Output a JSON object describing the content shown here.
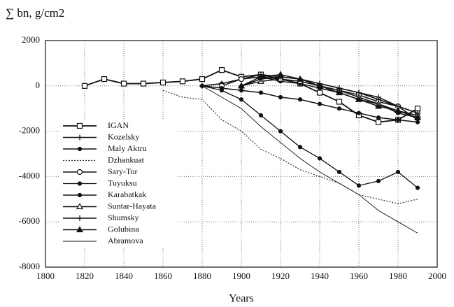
{
  "chart_data": {
    "type": "line",
    "title": "∑ bn, g/cm2",
    "x_label": "Years",
    "x": [
      1820,
      1830,
      1840,
      1850,
      1860,
      1870,
      1880,
      1890,
      1900,
      1910,
      1920,
      1930,
      1940,
      1950,
      1960,
      1970,
      1980,
      1990
    ],
    "xlim": [
      1800,
      2000
    ],
    "xticks": [
      1800,
      1820,
      1840,
      1860,
      1880,
      1900,
      1920,
      1940,
      1960,
      1980,
      2000
    ],
    "ylim": [
      -8000,
      2000
    ],
    "yticks": [
      2000,
      0,
      -2000,
      -4000,
      -6000,
      -8000
    ],
    "grid": true,
    "legend": "lower left",
    "series": [
      {
        "name": "IGAN",
        "color": "#111",
        "marker": "square",
        "dash": false,
        "width": 1.8,
        "values": [
          0,
          300,
          100,
          100,
          150,
          200,
          300,
          700,
          400,
          500,
          300,
          100,
          -300,
          -700,
          -1300,
          -1600,
          -1500,
          -1000
        ]
      },
      {
        "name": "Kozelsky",
        "color": "#111",
        "marker": "plus",
        "dash": false,
        "width": 1.5,
        "values": [
          null,
          null,
          null,
          null,
          null,
          null,
          0,
          100,
          300,
          500,
          400,
          300,
          100,
          -100,
          -300,
          -500,
          -900,
          -1500
        ]
      },
      {
        "name": "Maly Aktru",
        "color": "#111",
        "marker": "dot",
        "dash": false,
        "width": 1.5,
        "values": [
          null,
          null,
          null,
          null,
          null,
          null,
          0,
          100,
          300,
          400,
          200,
          100,
          -100,
          -300,
          -600,
          -800,
          -1200,
          -1400
        ]
      },
      {
        "name": "Dzhankuat",
        "color": "#333",
        "marker": "none",
        "dash": true,
        "width": 1.2,
        "values": [
          null,
          null,
          null,
          null,
          -200,
          -500,
          -600,
          -1500,
          -2000,
          -2800,
          -3200,
          -3700,
          -4000,
          -4300,
          -4800,
          -5000,
          -5200,
          -5000
        ]
      },
      {
        "name": "Sary-Tor",
        "color": "#111",
        "marker": "circle",
        "dash": false,
        "width": 1.5,
        "values": [
          null,
          null,
          null,
          null,
          null,
          null,
          null,
          0,
          300,
          400,
          300,
          200,
          0,
          -200,
          -400,
          -700,
          -900,
          -1200
        ]
      },
      {
        "name": "Tuyuksu",
        "color": "#111",
        "marker": "dot",
        "dash": false,
        "width": 1.3,
        "values": [
          null,
          null,
          null,
          null,
          null,
          null,
          0,
          -200,
          -600,
          -1300,
          -2000,
          -2700,
          -3200,
          -3800,
          -4400,
          -4200,
          -3800,
          -4500
        ]
      },
      {
        "name": "Karabatkak",
        "color": "#111",
        "marker": "dot",
        "dash": false,
        "width": 1.5,
        "values": [
          null,
          null,
          null,
          null,
          null,
          null,
          0,
          -100,
          -200,
          -300,
          -500,
          -600,
          -800,
          -1000,
          -1200,
          -1400,
          -1500,
          -1600
        ]
      },
      {
        "name": "Suntar-Hayata",
        "color": "#111",
        "marker": "triangle",
        "dash": false,
        "width": 1.5,
        "values": [
          null,
          null,
          null,
          null,
          null,
          null,
          null,
          null,
          0,
          200,
          300,
          200,
          0,
          -200,
          -500,
          -800,
          -1100,
          -1300
        ]
      },
      {
        "name": "Shumsky",
        "color": "#111",
        "marker": "plus",
        "dash": false,
        "width": 1.5,
        "values": [
          null,
          null,
          null,
          null,
          null,
          null,
          null,
          null,
          0,
          300,
          400,
          300,
          100,
          -100,
          -300,
          -600,
          -900,
          -1200
        ]
      },
      {
        "name": "Golubina",
        "color": "#111",
        "marker": "triangle-filled",
        "dash": false,
        "width": 1.5,
        "values": [
          null,
          null,
          null,
          null,
          null,
          null,
          null,
          null,
          0,
          400,
          500,
          300,
          0,
          -300,
          -600,
          -900,
          -1100,
          -1400
        ]
      },
      {
        "name": "Abramova",
        "color": "#111",
        "marker": "none",
        "dash": false,
        "width": 0.9,
        "values": [
          null,
          null,
          null,
          null,
          null,
          null,
          0,
          -500,
          -1000,
          -1800,
          -2500,
          -3200,
          -3800,
          -4300,
          -4800,
          -5500,
          -6000,
          -6500
        ]
      }
    ]
  }
}
